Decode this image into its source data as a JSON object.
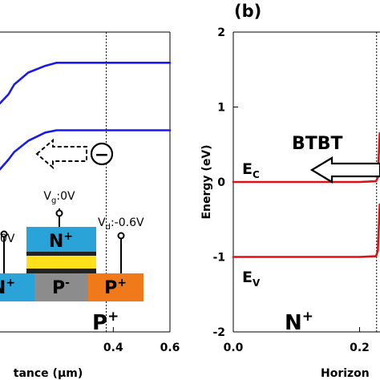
{
  "chart_data": [
    {
      "panel": "a",
      "type": "line",
      "xlabel": "tance (μm)",
      "ylabel": "",
      "xlim": [
        -0.0,
        0.6
      ],
      "ylim": [
        -2,
        2
      ],
      "x_ticks": [
        {
          "value": 0.4,
          "label": "0.4"
        },
        {
          "value": 0.6,
          "label": "0.6"
        }
      ],
      "grid": false,
      "dotted_vline_x": 0.375,
      "series": [
        {
          "color": "#1a1ae6",
          "points": [
            [
              0.0,
              1.05
            ],
            [
              0.03,
              1.17
            ],
            [
              0.05,
              1.3
            ],
            [
              0.1,
              1.46
            ],
            [
              0.16,
              1.55
            ],
            [
              0.2,
              1.59
            ],
            [
              0.3,
              1.59
            ],
            [
              0.4,
              1.59
            ],
            [
              0.6,
              1.59
            ]
          ]
        },
        {
          "color": "#1a1ae6",
          "points": [
            [
              0.0,
              0.17
            ],
            [
              0.03,
              0.3
            ],
            [
              0.05,
              0.4
            ],
            [
              0.1,
              0.55
            ],
            [
              0.16,
              0.66
            ],
            [
              0.2,
              0.69
            ],
            [
              0.3,
              0.69
            ],
            [
              0.4,
              0.69
            ],
            [
              0.6,
              0.69
            ]
          ]
        }
      ]
    },
    {
      "panel": "b",
      "type": "line",
      "panel_label": "(b)",
      "xlabel": "Horizon",
      "ylabel": "Energy (eV)",
      "xlim": [
        0.0,
        0.24
      ],
      "ylim": [
        -2,
        2
      ],
      "x_ticks": [
        {
          "value": 0.0,
          "label": "0.0"
        },
        {
          "value": 0.2,
          "label": "0.2"
        }
      ],
      "y_ticks": [
        {
          "value": -2,
          "label": "-2"
        },
        {
          "value": -1,
          "label": "-1"
        },
        {
          "value": 0,
          "label": "0"
        },
        {
          "value": 1,
          "label": "1"
        },
        {
          "value": 2,
          "label": "2"
        }
      ],
      "grid": false,
      "dotted_vline_x": 0.227,
      "series": [
        {
          "name": "E_C",
          "color": "#dd1111",
          "points": [
            [
              0.0,
              0.0
            ],
            [
              0.1,
              0.0
            ],
            [
              0.2,
              0.0
            ],
            [
              0.226,
              0.01
            ],
            [
              0.229,
              0.06
            ],
            [
              0.232,
              0.65
            ],
            [
              0.24,
              0.65
            ]
          ]
        },
        {
          "name": "E_V",
          "color": "#dd1111",
          "points": [
            [
              0.0,
              -1.0
            ],
            [
              0.1,
              -1.0
            ],
            [
              0.2,
              -1.0
            ],
            [
              0.226,
              -0.99
            ],
            [
              0.229,
              -0.92
            ],
            [
              0.232,
              -0.3
            ],
            [
              0.24,
              -0.3
            ]
          ]
        }
      ]
    }
  ],
  "annotations": {
    "panel_a": {
      "region_label": "P",
      "region_label_sup": "+",
      "electron_symbol": "−",
      "device": {
        "vg_label": "V",
        "vg_sub": "g",
        "vg_value": ":0V",
        "vs_value": "0V",
        "vd_label": "V",
        "vd_sub": "d",
        "vd_value": ":-0.6V",
        "gate_text": "N",
        "gate_sup": "+",
        "source_text": "N",
        "source_sup": "+",
        "channel_text": "P",
        "channel_sup": "-",
        "drain_text": "P",
        "drain_sup": "+",
        "colors": {
          "gate": "#2aa3d8",
          "oxide": "#ffe01a",
          "metal": "#222222",
          "source": "#2aa3d8",
          "channel": "#8c8c8c",
          "drain": "#f07a1a"
        }
      }
    },
    "panel_b": {
      "btbt_label": "BTBT",
      "ec_label": "E",
      "ec_sub": "C",
      "ev_label": "E",
      "ev_sub": "V",
      "region_label": "N",
      "region_label_sup": "+"
    }
  }
}
